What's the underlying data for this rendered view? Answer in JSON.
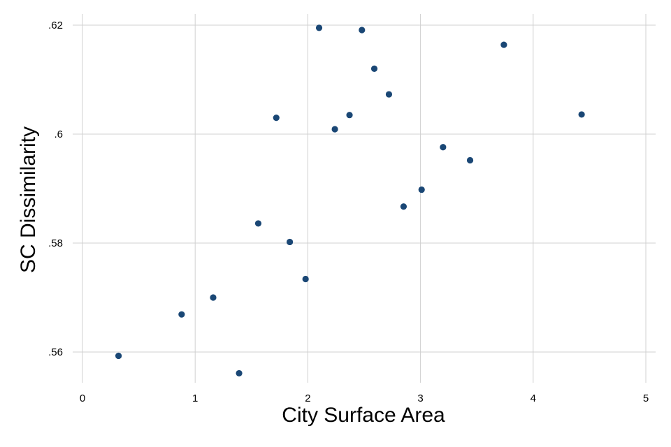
{
  "chart_data": {
    "type": "scatter",
    "title": "",
    "xlabel": "City Surface Area",
    "ylabel": "SC Dissimilarity",
    "xlim": [
      0,
      5
    ],
    "ylim": [
      0.553,
      0.622
    ],
    "x_ticks": [
      0,
      1,
      2,
      3,
      4,
      5
    ],
    "x_tick_labels": [
      "0",
      "1",
      "2",
      "3",
      "4",
      "5"
    ],
    "y_ticks": [
      0.56,
      0.58,
      0.6,
      0.62
    ],
    "y_tick_labels": [
      ".56",
      ".58",
      ".6",
      ".62"
    ],
    "grid": true,
    "legend": "none",
    "point_color": "#1a4775",
    "series": [
      {
        "points": [
          {
            "x": 0.32,
            "y": 0.5593
          },
          {
            "x": 0.88,
            "y": 0.5669
          },
          {
            "x": 1.16,
            "y": 0.57
          },
          {
            "x": 1.39,
            "y": 0.5561
          },
          {
            "x": 1.56,
            "y": 0.5836
          },
          {
            "x": 1.72,
            "y": 0.603
          },
          {
            "x": 1.84,
            "y": 0.5802
          },
          {
            "x": 1.98,
            "y": 0.5734
          },
          {
            "x": 2.1,
            "y": 0.6195
          },
          {
            "x": 2.24,
            "y": 0.6009
          },
          {
            "x": 2.37,
            "y": 0.6035
          },
          {
            "x": 2.48,
            "y": 0.6191
          },
          {
            "x": 2.59,
            "y": 0.612
          },
          {
            "x": 2.72,
            "y": 0.6073
          },
          {
            "x": 2.85,
            "y": 0.5867
          },
          {
            "x": 3.01,
            "y": 0.5898
          },
          {
            "x": 3.2,
            "y": 0.5976
          },
          {
            "x": 3.44,
            "y": 0.5952
          },
          {
            "x": 3.74,
            "y": 0.6164
          },
          {
            "x": 4.43,
            "y": 0.6036
          }
        ]
      }
    ]
  }
}
